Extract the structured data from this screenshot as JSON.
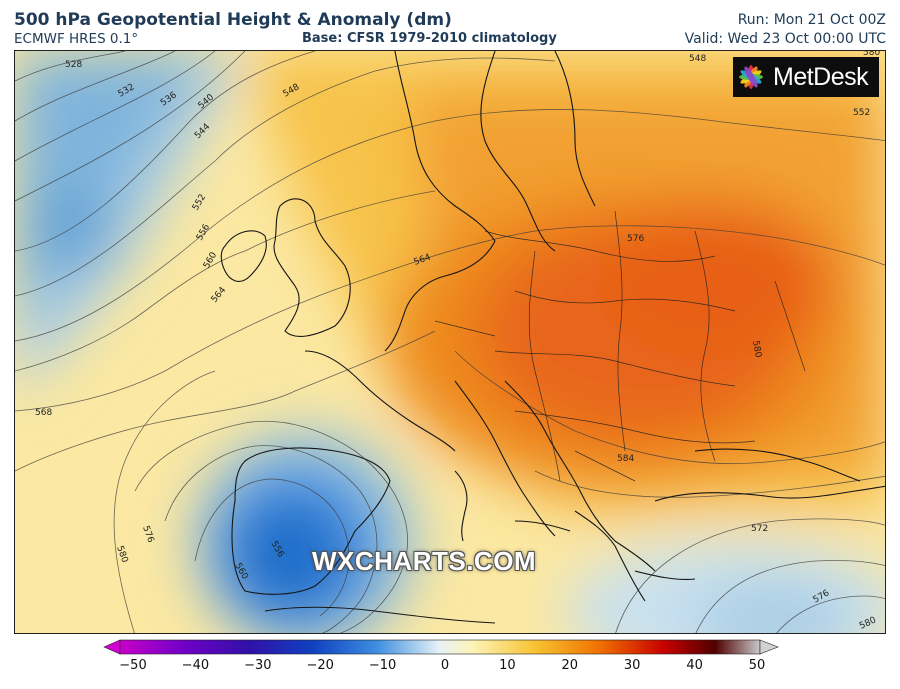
{
  "header": {
    "title": "500 hPa Geopotential Height & Anomaly (dm)",
    "model": "ECMWF HRES 0.1°",
    "base": "Base: CFSR 1979-2010 climatology",
    "run": "Run: Mon 21 Oct 00Z",
    "valid": "Valid: Wed 23 Oct 00:00 UTC"
  },
  "logo": {
    "text": "MetDesk",
    "icon": "metdesk-star-icon"
  },
  "watermark": "WXCHARTS.COM",
  "contours": {
    "labels": [
      "528",
      "532",
      "536",
      "540",
      "544",
      "548",
      "548",
      "552",
      "552",
      "556",
      "560",
      "564",
      "564",
      "568",
      "576",
      "576",
      "580",
      "580",
      "580",
      "584",
      "572",
      "576",
      "580",
      "556",
      "560"
    ]
  },
  "colorbar": {
    "ticks": [
      "−50",
      "−40",
      "−30",
      "−20",
      "−10",
      "0",
      "10",
      "20",
      "30",
      "40",
      "50"
    ],
    "colors": [
      "#c800c8",
      "#7000c8",
      "#3010a8",
      "#1040c0",
      "#3c8ee0",
      "#a8d0ec",
      "#fdf4b8",
      "#f7c230",
      "#f07000",
      "#c80000",
      "#500000",
      "#c8c8c8"
    ]
  }
}
